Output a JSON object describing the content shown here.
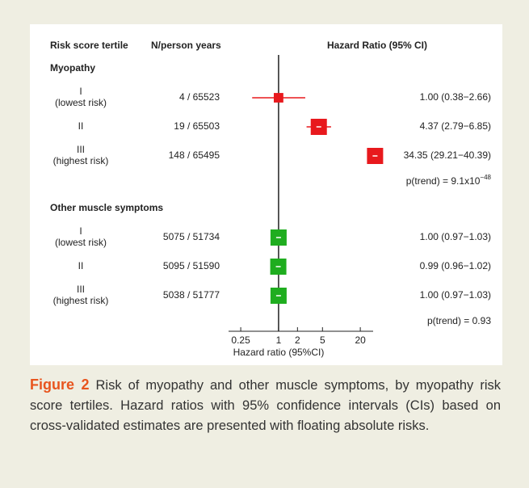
{
  "chart_data": {
    "type": "forest",
    "columns": [
      "Risk score tertile",
      "N/person years",
      "Hazard Ratio (95% CI)"
    ],
    "groups": [
      {
        "name": "Myopathy",
        "color": "#e8191d",
        "rows": [
          {
            "label": "I",
            "sublabel": "(lowest risk)",
            "n": "4 / 65523",
            "estimate": 1.0,
            "lower": 0.38,
            "upper": 2.66,
            "value_label": "1.00 (0.38−2.66)"
          },
          {
            "label": "II",
            "n": "19 / 65503",
            "estimate": 4.37,
            "lower": 2.79,
            "upper": 6.85,
            "value_label": "4.37 (2.79−6.85)"
          },
          {
            "label": "III",
            "sublabel": "(highest risk)",
            "n": "148 / 65495",
            "estimate": 34.35,
            "lower": 29.21,
            "upper": 40.39,
            "value_label": "34.35 (29.21−40.39)"
          }
        ],
        "p_trend": "p(trend) = 9.1x10",
        "p_trend_exponent": "−48"
      },
      {
        "name": "Other muscle symptoms",
        "color": "#1fad1f",
        "rows": [
          {
            "label": "I",
            "sublabel": "(lowest risk)",
            "n": "5075 / 51734",
            "estimate": 1.0,
            "lower": 0.97,
            "upper": 1.03,
            "value_label": "1.00 (0.97−1.03)"
          },
          {
            "label": "II",
            "n": "5095 / 51590",
            "estimate": 0.99,
            "lower": 0.96,
            "upper": 1.02,
            "value_label": "0.99 (0.96−1.02)"
          },
          {
            "label": "III",
            "sublabel": "(highest risk)",
            "n": "5038 / 51777",
            "estimate": 1.0,
            "lower": 0.97,
            "upper": 1.03,
            "value_label": "1.00 (0.97−1.03)"
          }
        ],
        "p_trend": "p(trend) = 0.93"
      }
    ],
    "x_log": true,
    "xlim": [
      0.16,
      32
    ],
    "xticks": [
      0.25,
      1,
      2,
      5,
      20
    ],
    "reference": 1,
    "xlabel": "Hazard ratio (95%CI)"
  },
  "caption": {
    "label": "Figure 2",
    "text": "Risk of myopathy and other muscle symptoms, by myopathy risk score tertiles. Hazard ratios with 95% confidence intervals (CIs) based on cross-validated estimates are presented with floating absolute risks."
  }
}
